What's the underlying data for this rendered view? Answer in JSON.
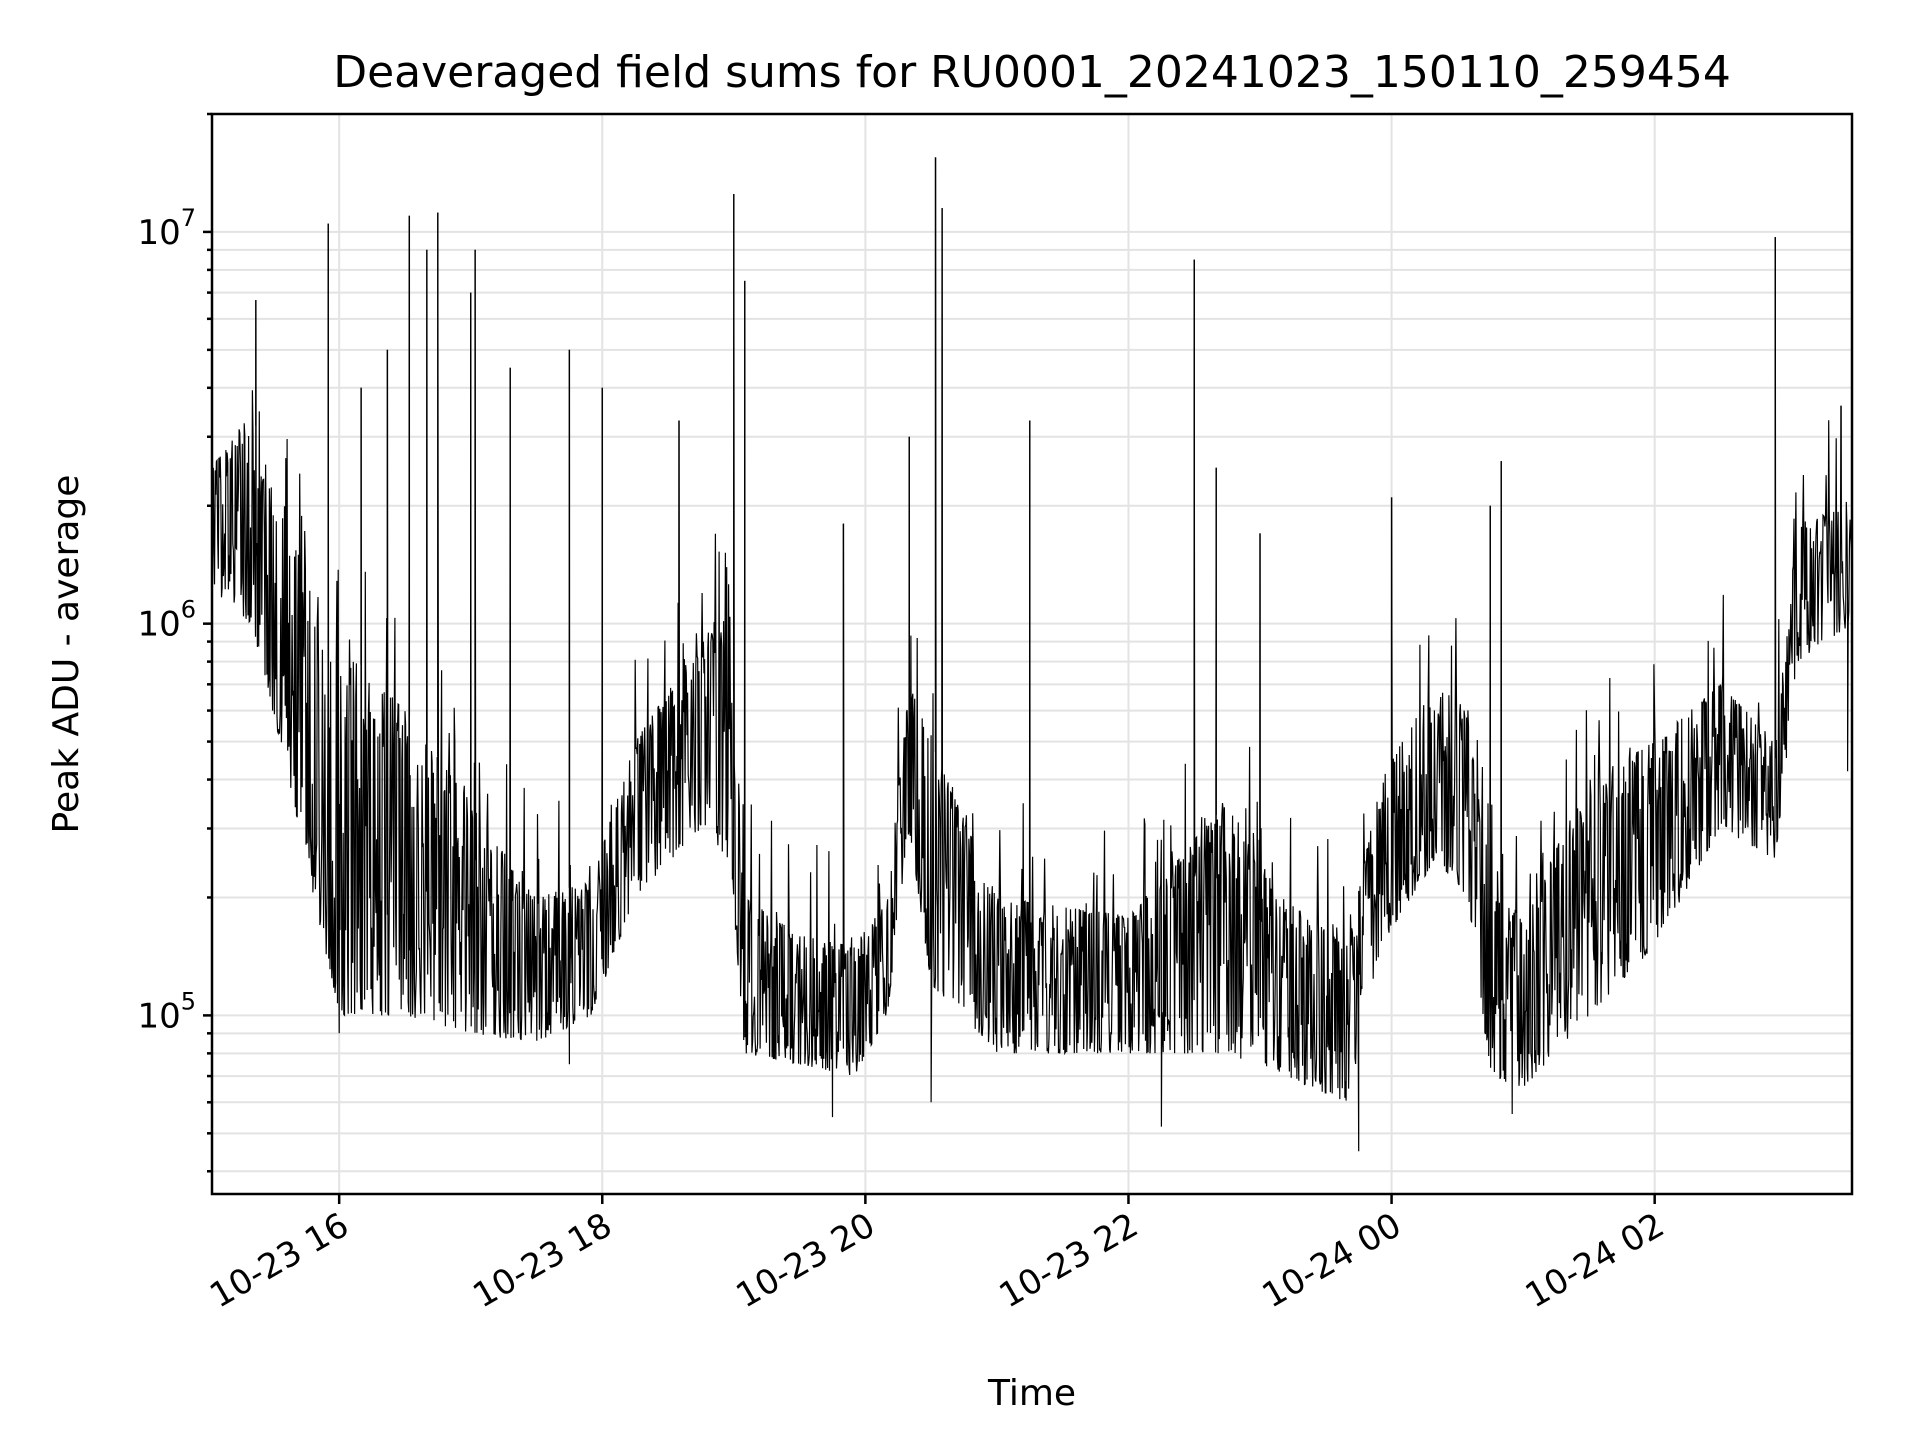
{
  "chart_data": {
    "type": "line",
    "title": "Deaveraged field sums for RU0001_20241023_150110_259454",
    "xlabel": "Time",
    "ylabel": "Peak ADU - average",
    "yscale": "log",
    "grid": true,
    "x_range": [
      "2024-10-23 15:02",
      "2024-10-24 03:30"
    ],
    "ylim": [
      35000,
      20000000
    ],
    "x_ticks": [
      {
        "label": "10-23 16",
        "t": "2024-10-23 16:00"
      },
      {
        "label": "10-23 18",
        "t": "2024-10-23 18:00"
      },
      {
        "label": "10-23 20",
        "t": "2024-10-23 20:00"
      },
      {
        "label": "10-23 22",
        "t": "2024-10-23 22:00"
      },
      {
        "label": "10-24 00",
        "t": "2024-10-24 00:00"
      },
      {
        "label": "10-24 02",
        "t": "2024-10-24 02:00"
      }
    ],
    "y_ticks": [
      {
        "base": "10",
        "exp": "5",
        "value": 100000
      },
      {
        "base": "10",
        "exp": "6",
        "value": 1000000
      },
      {
        "base": "10",
        "exp": "7",
        "value": 10000000
      }
    ],
    "series": [
      {
        "color": "#000000",
        "envelope": [
          {
            "t": "2024-10-23 15:02",
            "low": 1200000,
            "high": 2500000
          },
          {
            "t": "2024-10-23 15:20",
            "low": 1000000,
            "high": 3500000
          },
          {
            "t": "2024-10-23 15:35",
            "low": 450000,
            "high": 1800000
          },
          {
            "t": "2024-10-23 16:00",
            "low": 100000,
            "high": 900000
          },
          {
            "t": "2024-10-23 16:30",
            "low": 100000,
            "high": 600000
          },
          {
            "t": "2024-10-23 17:00",
            "low": 90000,
            "high": 350000
          },
          {
            "t": "2024-10-23 17:30",
            "low": 85000,
            "high": 200000
          },
          {
            "t": "2024-10-23 17:55",
            "low": 100000,
            "high": 220000
          },
          {
            "t": "2024-10-23 18:15",
            "low": 200000,
            "high": 500000
          },
          {
            "t": "2024-10-23 18:45",
            "low": 300000,
            "high": 900000
          },
          {
            "t": "2024-10-23 18:58",
            "low": 250000,
            "high": 1100000
          },
          {
            "t": "2024-10-23 19:05",
            "low": 80000,
            "high": 200000
          },
          {
            "t": "2024-10-23 19:30",
            "low": 75000,
            "high": 160000
          },
          {
            "t": "2024-10-23 19:55",
            "low": 70000,
            "high": 150000
          },
          {
            "t": "2024-10-23 20:10",
            "low": 100000,
            "high": 200000
          },
          {
            "t": "2024-10-23 20:20",
            "low": 300000,
            "high": 700000
          },
          {
            "t": "2024-10-23 20:30",
            "low": 120000,
            "high": 500000
          },
          {
            "t": "2024-10-23 21:00",
            "low": 80000,
            "high": 200000
          },
          {
            "t": "2024-10-23 22:00",
            "low": 80000,
            "high": 180000
          },
          {
            "t": "2024-10-23 22:45",
            "low": 80000,
            "high": 350000
          },
          {
            "t": "2024-10-23 23:10",
            "low": 70000,
            "high": 200000
          },
          {
            "t": "2024-10-23 23:40",
            "low": 60000,
            "high": 150000
          },
          {
            "t": "2024-10-23 23:55",
            "low": 150000,
            "high": 400000
          },
          {
            "t": "2024-10-24 00:20",
            "low": 250000,
            "high": 700000
          },
          {
            "t": "2024-10-24 00:35",
            "low": 200000,
            "high": 600000
          },
          {
            "t": "2024-10-24 00:45",
            "low": 70000,
            "high": 200000
          },
          {
            "t": "2024-10-24 01:00",
            "low": 65000,
            "high": 180000
          },
          {
            "t": "2024-10-24 01:30",
            "low": 100000,
            "high": 400000
          },
          {
            "t": "2024-10-24 02:00",
            "low": 150000,
            "high": 500000
          },
          {
            "t": "2024-10-24 02:30",
            "low": 300000,
            "high": 700000
          },
          {
            "t": "2024-10-24 02:55",
            "low": 250000,
            "high": 500000
          },
          {
            "t": "2024-10-24 03:05",
            "low": 800000,
            "high": 1800000
          },
          {
            "t": "2024-10-24 03:30",
            "low": 1000000,
            "high": 2000000
          }
        ],
        "spikes": [
          {
            "t": "2024-10-23 15:22",
            "value": 6700000
          },
          {
            "t": "2024-10-23 15:55",
            "value": 10500000
          },
          {
            "t": "2024-10-23 16:10",
            "value": 4000000
          },
          {
            "t": "2024-10-23 16:22",
            "value": 5000000
          },
          {
            "t": "2024-10-23 16:32",
            "value": 11000000
          },
          {
            "t": "2024-10-23 16:40",
            "value": 9000000
          },
          {
            "t": "2024-10-23 16:45",
            "value": 11200000
          },
          {
            "t": "2024-10-23 17:00",
            "value": 7000000
          },
          {
            "t": "2024-10-23 17:02",
            "value": 9000000
          },
          {
            "t": "2024-10-23 17:18",
            "value": 4500000
          },
          {
            "t": "2024-10-23 17:45",
            "value": 5000000
          },
          {
            "t": "2024-10-23 18:00",
            "value": 4000000
          },
          {
            "t": "2024-10-23 18:35",
            "value": 3300000
          },
          {
            "t": "2024-10-23 19:00",
            "value": 12500000
          },
          {
            "t": "2024-10-23 19:05",
            "value": 7500000
          },
          {
            "t": "2024-10-23 19:50",
            "value": 1800000
          },
          {
            "t": "2024-10-23 20:20",
            "value": 3000000
          },
          {
            "t": "2024-10-23 20:32",
            "value": 15500000
          },
          {
            "t": "2024-10-23 20:35",
            "value": 11500000
          },
          {
            "t": "2024-10-23 21:15",
            "value": 3300000
          },
          {
            "t": "2024-10-23 22:30",
            "value": 8500000
          },
          {
            "t": "2024-10-23 22:40",
            "value": 2500000
          },
          {
            "t": "2024-10-23 23:00",
            "value": 1700000
          },
          {
            "t": "2024-10-24 00:00",
            "value": 2100000
          },
          {
            "t": "2024-10-24 00:45",
            "value": 2000000
          },
          {
            "t": "2024-10-24 00:50",
            "value": 2600000
          },
          {
            "t": "2024-10-24 02:55",
            "value": 9700000
          },
          {
            "t": "2024-10-24 03:25",
            "value": 3600000
          }
        ],
        "dips": [
          {
            "t": "2024-10-23 16:00",
            "value": 90000
          },
          {
            "t": "2024-10-23 17:45",
            "value": 75000
          },
          {
            "t": "2024-10-23 19:45",
            "value": 55000
          },
          {
            "t": "2024-10-23 20:30",
            "value": 60000
          },
          {
            "t": "2024-10-23 22:15",
            "value": 52000
          },
          {
            "t": "2024-10-23 23:45",
            "value": 45000
          },
          {
            "t": "2024-10-24 00:55",
            "value": 56000
          },
          {
            "t": "2024-10-24 03:28",
            "value": 420000
          }
        ]
      }
    ]
  }
}
